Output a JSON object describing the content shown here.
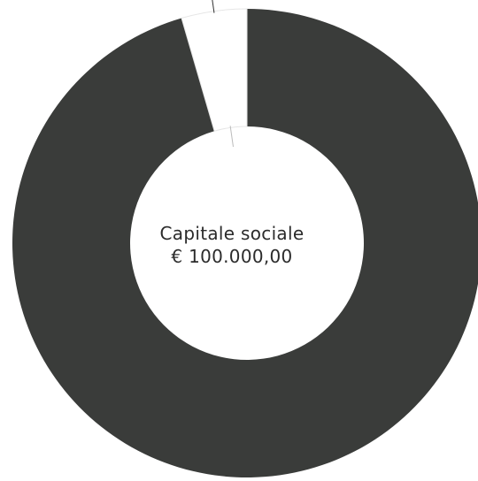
{
  "chart_data": {
    "type": "pie",
    "style": "donut",
    "slices": [
      {
        "share": 0.955,
        "color": "#3a3c3a"
      },
      {
        "share": 0.045,
        "color": "#ffffff"
      }
    ],
    "center_text": {
      "line1": "Capitale sociale",
      "line2": "€ 100.000,00"
    },
    "legend": "none"
  }
}
